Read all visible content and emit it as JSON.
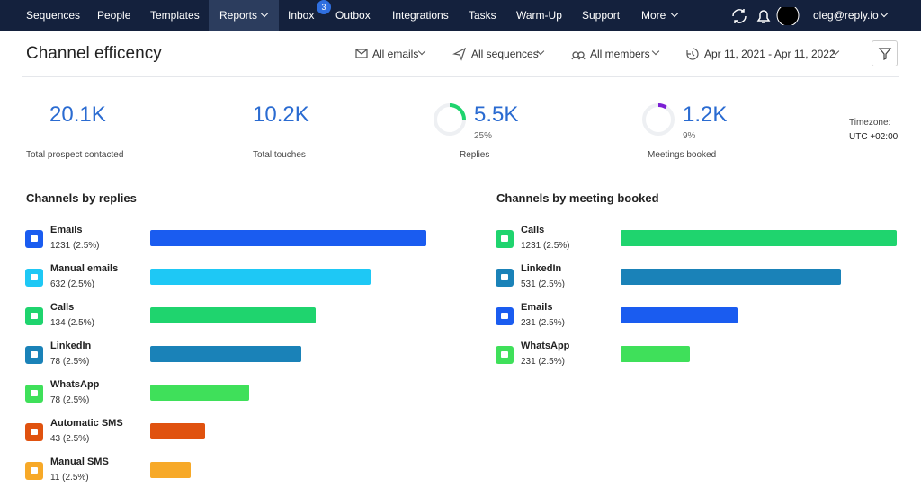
{
  "nav": {
    "items": [
      "Sequences",
      "People",
      "Templates",
      "Reports",
      "Inbox",
      "Outbox",
      "Integrations",
      "Tasks",
      "Warm-Up",
      "Support",
      "More"
    ],
    "inbox_badge": "3",
    "user": "oleg@reply.io"
  },
  "header": {
    "title": "Channel efficency",
    "filters": [
      "All emails",
      "All sequences",
      "All members",
      "Apr 11, 2021 - Apr 11, 2022"
    ]
  },
  "stats": [
    {
      "value": "20.1K",
      "label": "Total prospect contacted"
    },
    {
      "value": "10.2K",
      "label": "Total touches"
    },
    {
      "value": "5.5K",
      "percent": "25%",
      "label": "Replies"
    },
    {
      "value": "1.2K",
      "percent": "9%",
      "label": "Meetings booked"
    }
  ],
  "timezone": {
    "label": "Timezone:",
    "value": "UTC +02:00"
  },
  "panels": [
    {
      "title": "Channels by replies",
      "rows": [
        {
          "name": "Emails",
          "stat": "1231 (2.5%)"
        },
        {
          "name": "Manual emails",
          "stat": "632 (2.5%)"
        },
        {
          "name": "Calls",
          "stat": "134 (2.5%)"
        },
        {
          "name": "LinkedIn",
          "stat": "78 (2.5%)"
        },
        {
          "name": "WhatsApp",
          "stat": "78 (2.5%)"
        },
        {
          "name": "Automatic SMS",
          "stat": "43 (2.5%)"
        },
        {
          "name": "Manual SMS",
          "stat": "11 (2.5%)"
        }
      ]
    },
    {
      "title": "Channels by meeting booked",
      "rows": [
        {
          "name": "Calls",
          "stat": "1231 (2.5%)"
        },
        {
          "name": "LinkedIn",
          "stat": "531 (2.5%)"
        },
        {
          "name": "Emails",
          "stat": "231 (2.5%)"
        },
        {
          "name": "WhatsApp",
          "stat": "231 (2.5%)"
        }
      ]
    }
  ]
}
